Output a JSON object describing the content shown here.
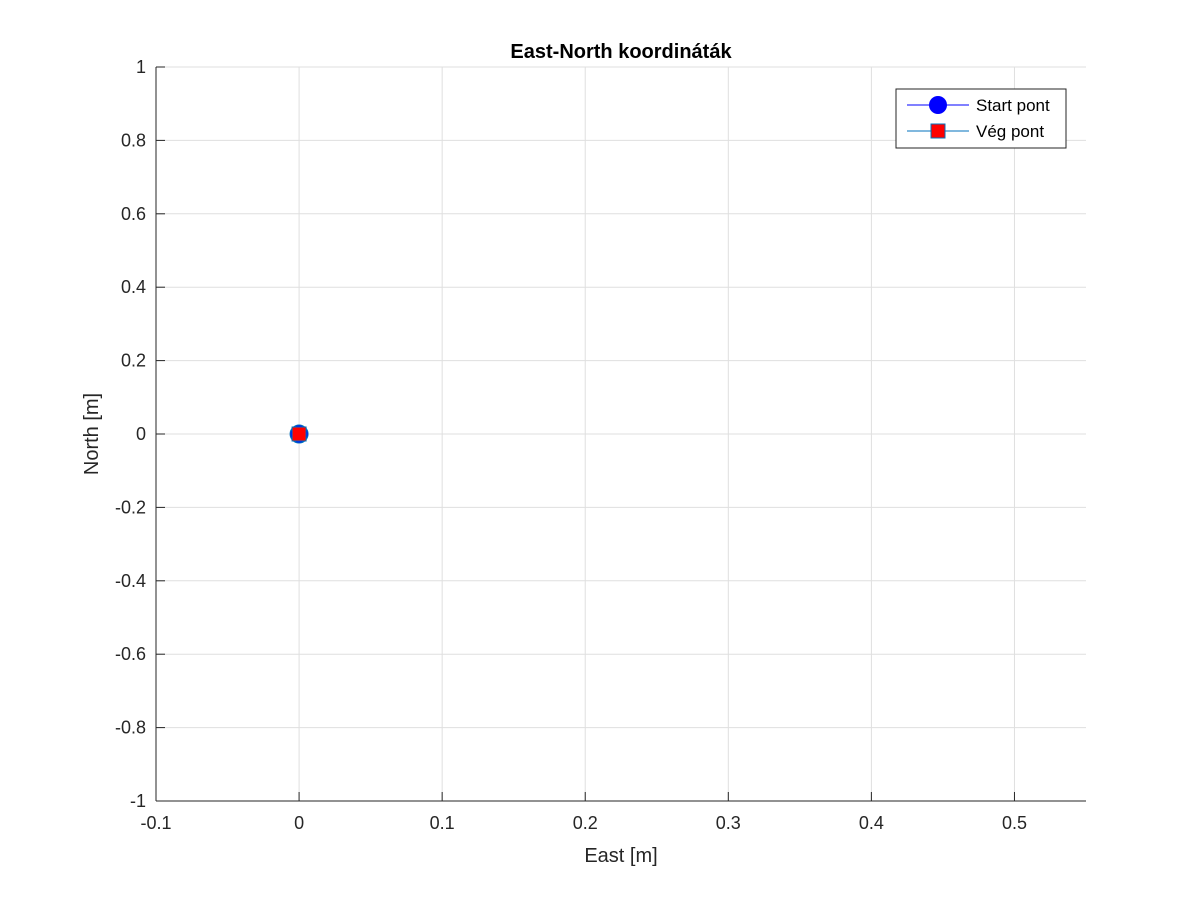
{
  "chart_data": {
    "type": "scatter",
    "title": "East-North koordináták",
    "xlabel": "East [m]",
    "ylabel": "North [m]",
    "xlim": [
      -0.1,
      0.55
    ],
    "ylim": [
      -1,
      1
    ],
    "xticks": [
      -0.1,
      0,
      0.1,
      0.2,
      0.3,
      0.4,
      0.5
    ],
    "xtick_labels": [
      "-0.1",
      "0",
      "0.1",
      "0.2",
      "0.3",
      "0.4",
      "0.5"
    ],
    "yticks": [
      -1,
      -0.8,
      -0.6,
      -0.4,
      -0.2,
      0,
      0.2,
      0.4,
      0.6,
      0.8,
      1
    ],
    "ytick_labels": [
      "-1",
      "-0.8",
      "-0.6",
      "-0.4",
      "-0.2",
      "0",
      "0.2",
      "0.4",
      "0.6",
      "0.8",
      "1"
    ],
    "grid": true,
    "legend_position": "top-right",
    "series": [
      {
        "name": "Start pont",
        "marker": "circle",
        "color": "#0000ff",
        "x": [
          0
        ],
        "y": [
          0
        ]
      },
      {
        "name": "Vég pont",
        "marker": "square",
        "color": "#ff0000",
        "x": [
          0
        ],
        "y": [
          0
        ]
      }
    ]
  }
}
